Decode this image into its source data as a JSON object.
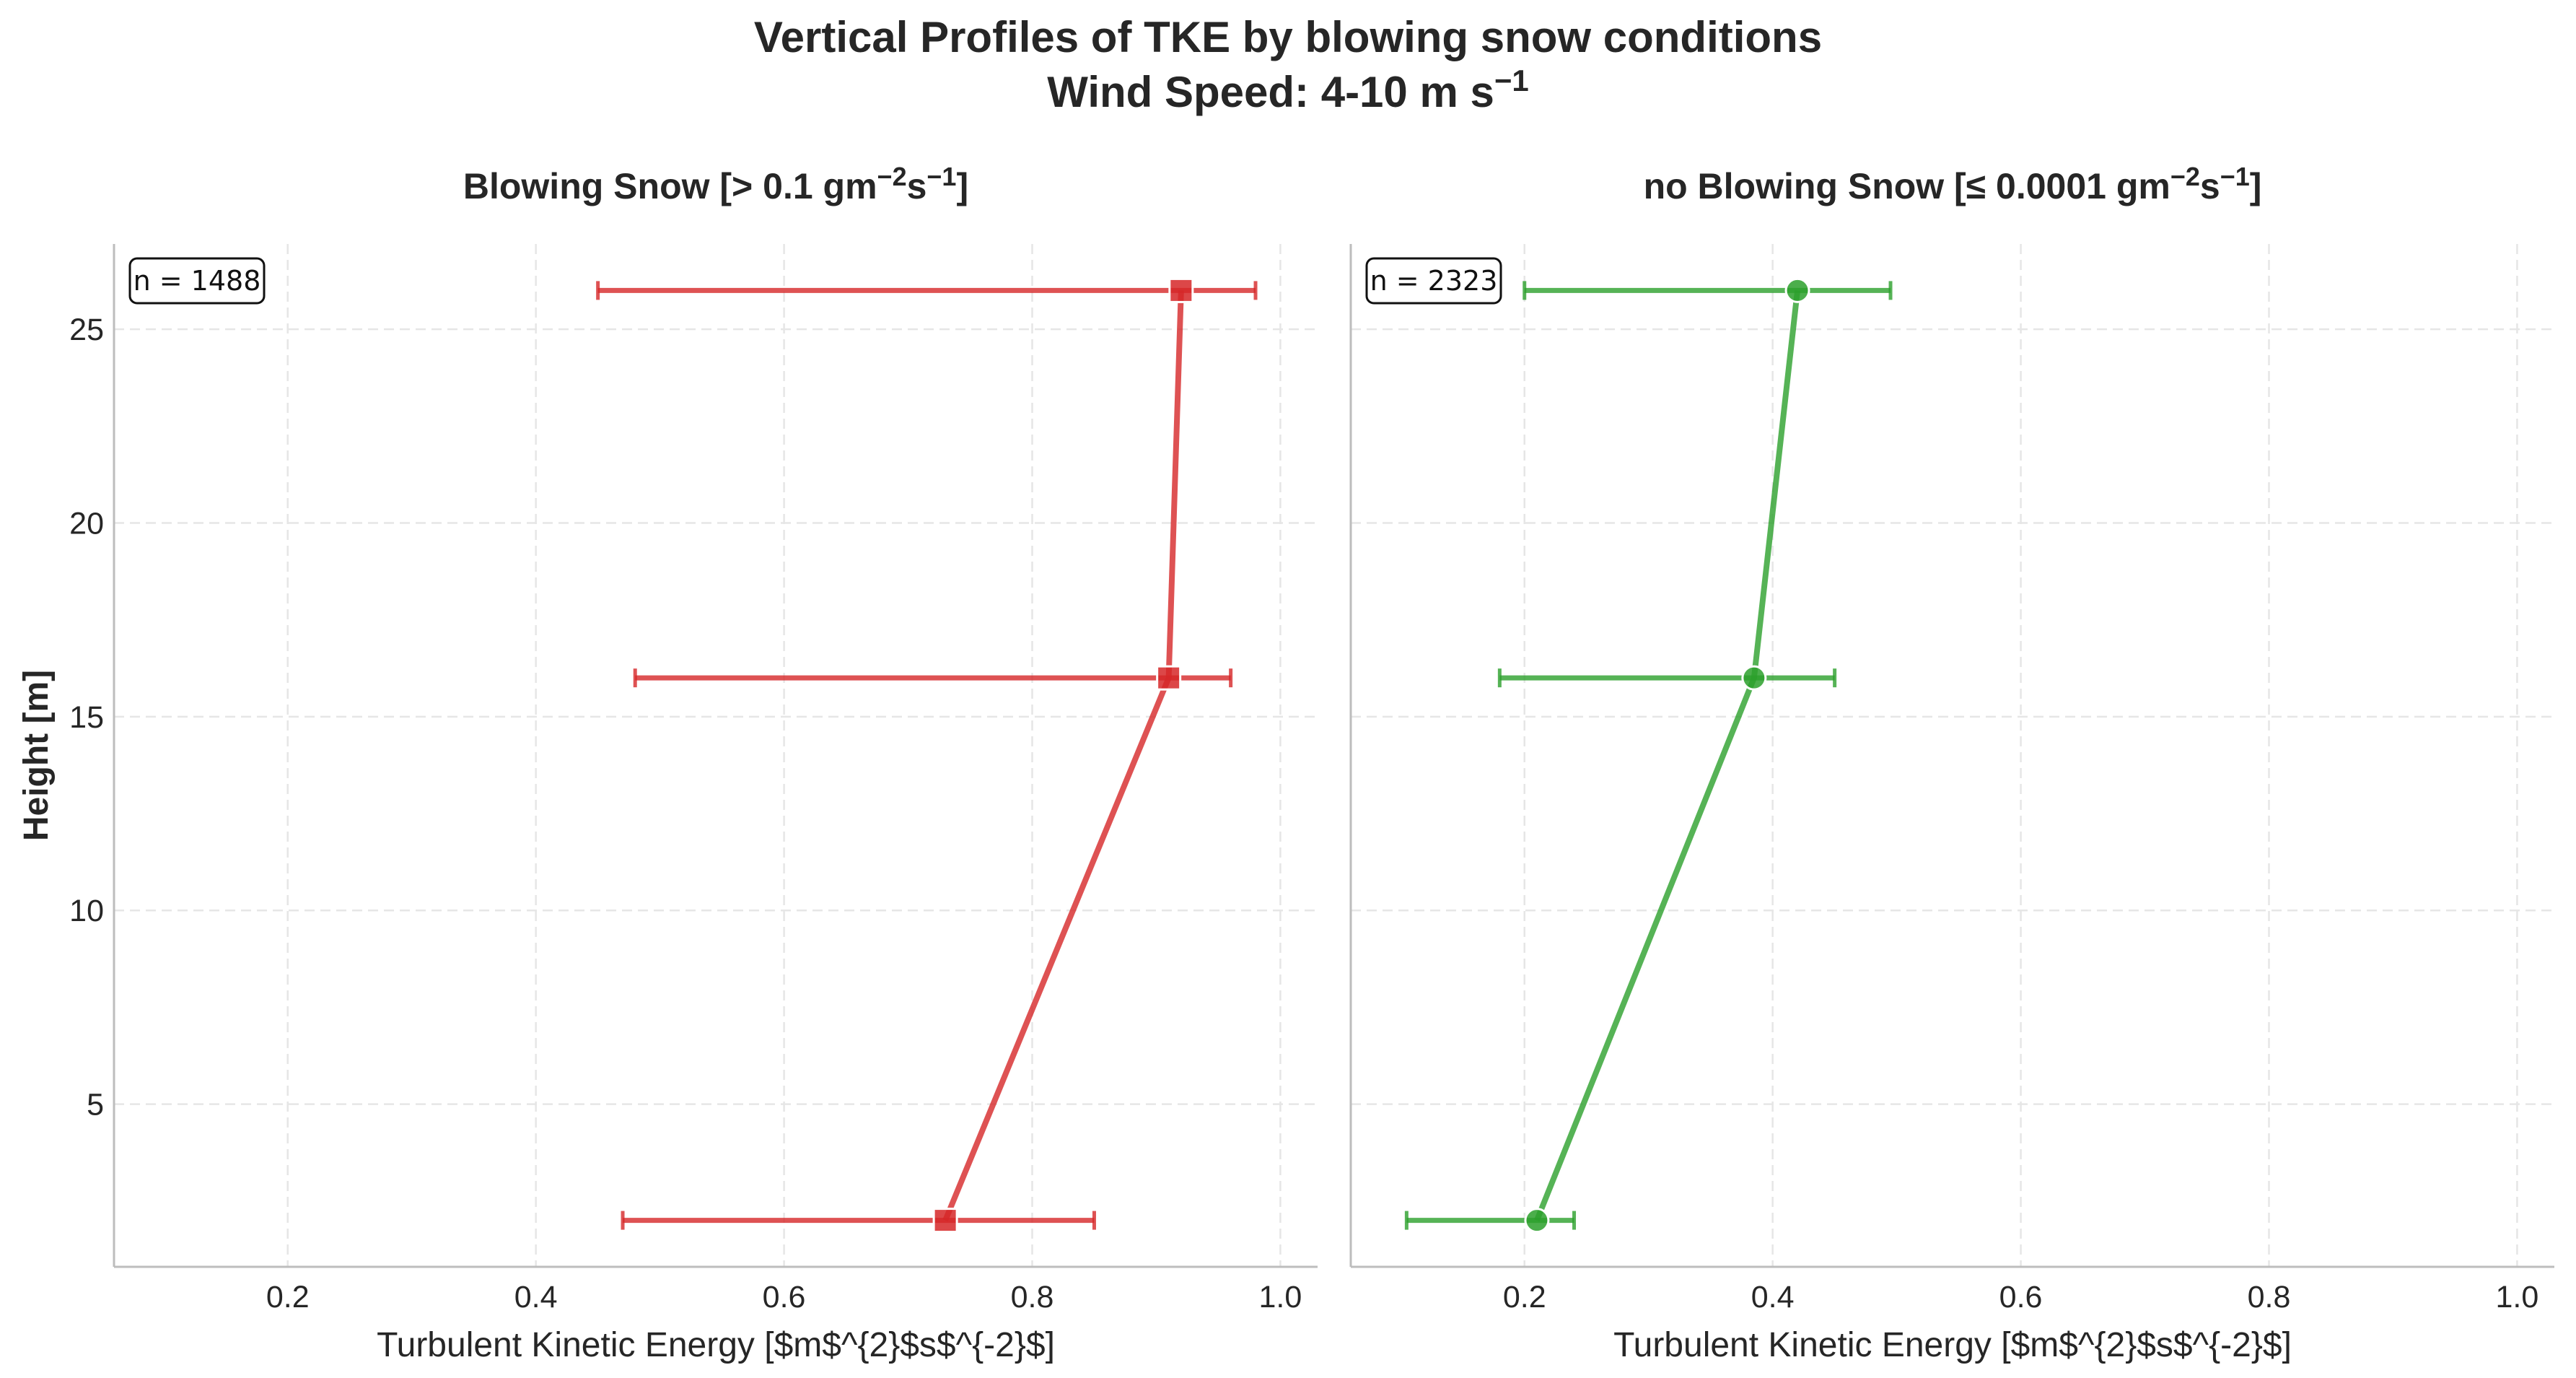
{
  "figure": {
    "title_line1": "Vertical Profiles of TKE by blowing snow conditions",
    "title_line2_main": "Wind Speed: 4-10 m s",
    "title_line2_sup": "−1"
  },
  "chart_data": [
    {
      "type": "line",
      "panel": "left",
      "title_parts": [
        "Blowing Snow [> 0.1 gm",
        "−2",
        "s",
        "−1",
        "]"
      ],
      "xlabel": "Turbulent Kinetic Energy [$m$^{2}$s$^{-2}$]",
      "ylabel": "Height [m]",
      "xlim": [
        0.06,
        1.03
      ],
      "ylim": [
        0.8,
        27.2
      ],
      "xticks": [
        0.2,
        0.4,
        0.6,
        0.8,
        1.0
      ],
      "xtick_labels": [
        "0.2",
        "0.4",
        "0.6",
        "0.8",
        "1.0"
      ],
      "yticks": [
        5,
        10,
        15,
        20,
        25
      ],
      "ytick_labels": [
        "5",
        "10",
        "15",
        "20",
        "25"
      ],
      "grid": true,
      "annotation": "n = 1488",
      "color": "#d62728",
      "marker": "square",
      "series": [
        {
          "y": [
            2,
            16,
            26
          ],
          "x": [
            0.73,
            0.91,
            0.92
          ],
          "x_err_low": [
            0.47,
            0.48,
            0.45
          ],
          "x_err_high": [
            0.85,
            0.96,
            0.98
          ]
        }
      ]
    },
    {
      "type": "line",
      "panel": "right",
      "title_parts": [
        "no Blowing Snow [≤ 0.0001 gm",
        "−2",
        "s",
        "−1",
        "]"
      ],
      "xlabel": "Turbulent Kinetic Energy [$m$^{2}$s$^{-2}$]",
      "ylabel": "",
      "xlim": [
        0.06,
        1.03
      ],
      "ylim": [
        0.8,
        27.2
      ],
      "xticks": [
        0.2,
        0.4,
        0.6,
        0.8,
        1.0
      ],
      "xtick_labels": [
        "0.2",
        "0.4",
        "0.6",
        "0.8",
        "1.0"
      ],
      "yticks": [
        5,
        10,
        15,
        20,
        25
      ],
      "ytick_labels": [],
      "grid": true,
      "annotation": "n = 2323",
      "color": "#2ca02c",
      "marker": "circle",
      "series": [
        {
          "y": [
            2,
            16,
            26
          ],
          "x": [
            0.21,
            0.385,
            0.42
          ],
          "x_err_low": [
            0.105,
            0.18,
            0.2
          ],
          "x_err_high": [
            0.24,
            0.45,
            0.495
          ]
        }
      ]
    }
  ]
}
